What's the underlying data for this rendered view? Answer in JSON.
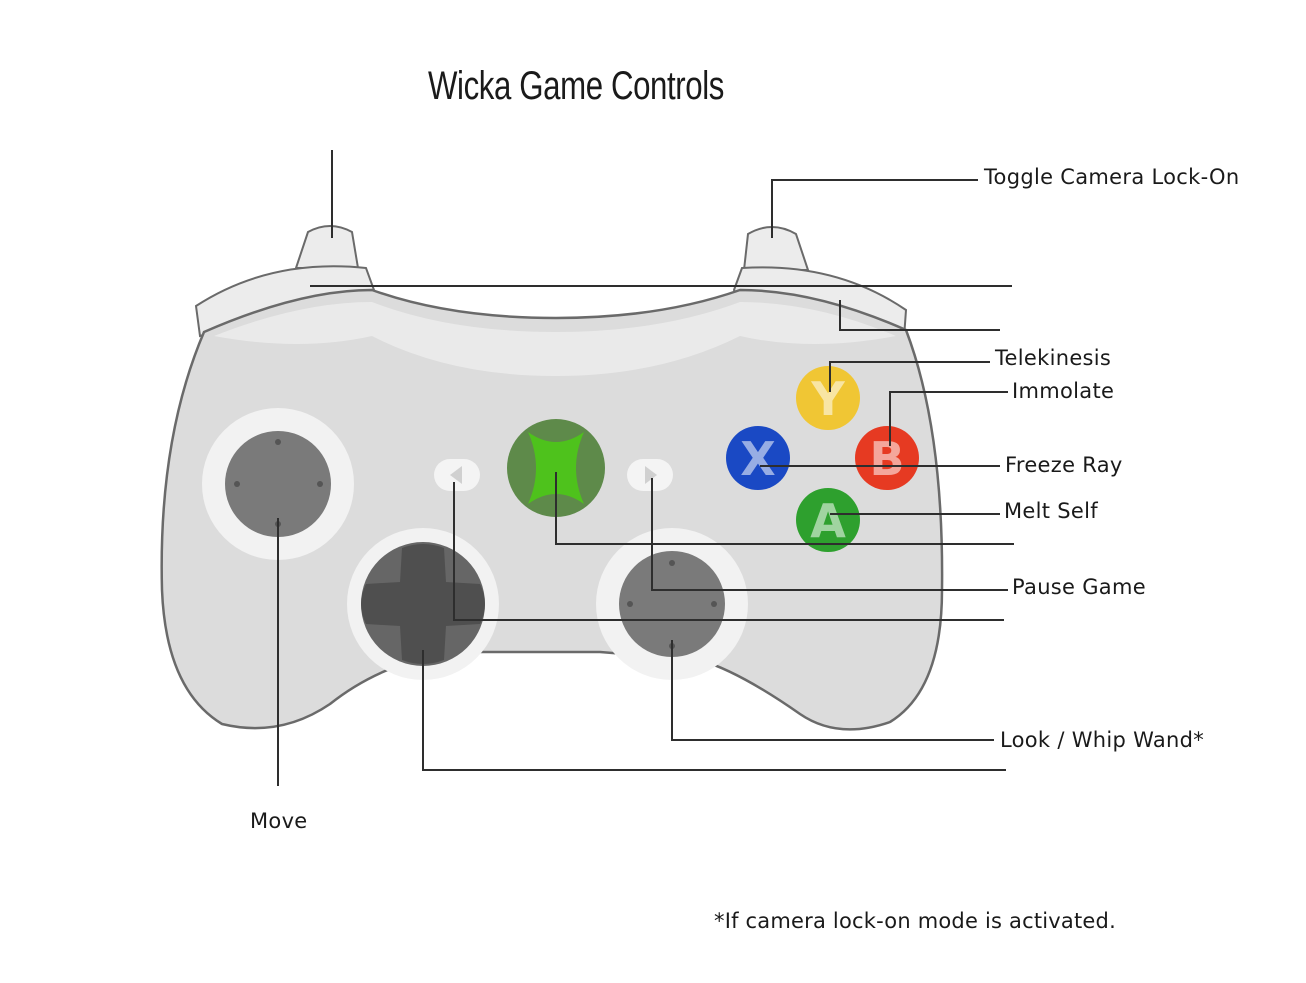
{
  "title": "Wicka Game Controls",
  "labels": {
    "right_bumper": "Toggle Camera Lock-On",
    "y_button": "Telekinesis",
    "b_button": "Immolate",
    "x_button": "Freeze Ray",
    "a_button": "Melt Self",
    "start_button": "Pause Game",
    "right_stick": "Look / Whip Wand*",
    "left_stick": "Move"
  },
  "button_letters": {
    "y": "Y",
    "b": "B",
    "x": "X",
    "a": "A"
  },
  "footnote": "*If camera lock-on mode is activated.",
  "colors": {
    "body": "#dcdcdc",
    "outline": "#6a6a6a",
    "stick": "#7a7a7a",
    "dpad": "#555555",
    "guide": "#5e8a4a",
    "guide_x": "#4ec21c",
    "y": "#f0c634",
    "b": "#e63a22",
    "x": "#1a49c4",
    "a": "#2ea02e"
  }
}
